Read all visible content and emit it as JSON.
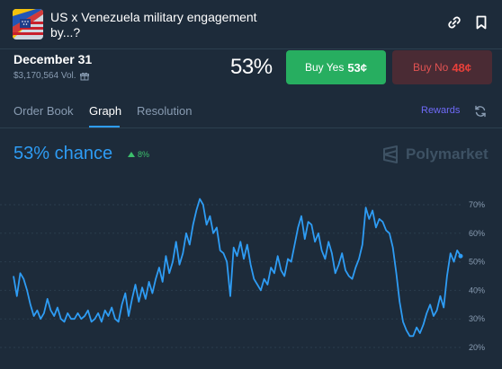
{
  "market": {
    "title": "US x Venezuela military engagement by...?",
    "icon": "flag-usa-venezuela"
  },
  "header_icons": [
    "link-icon",
    "bookmark-icon"
  ],
  "outcome": {
    "date": "December 31",
    "volume": "$3,170,564 Vol.",
    "volume_icon": "gift-icon",
    "probability": "53%"
  },
  "buttons": {
    "yes_label": "Buy Yes",
    "yes_price": "53¢",
    "no_label": "Buy No",
    "no_price": "48¢"
  },
  "tabs": [
    {
      "label": "Order Book",
      "active": false
    },
    {
      "label": "Graph",
      "active": true
    },
    {
      "label": "Resolution",
      "active": false
    }
  ],
  "rewards_label": "Rewards",
  "graph": {
    "chance_text": "53% chance",
    "delta": "8%",
    "delta_direction": "up",
    "brand": "Polymarket"
  },
  "colors": {
    "background": "#1d2b3a",
    "accent_blue": "#2e9cf4",
    "yes_green": "#27ae60",
    "no_red": "#e8403a",
    "rewards_purple": "#6f6af8"
  },
  "chart_data": {
    "type": "line",
    "y_ticks": [
      "70%",
      "60%",
      "50%",
      "40%",
      "30%",
      "20%"
    ],
    "y_tick_values": [
      70,
      60,
      50,
      40,
      30,
      20
    ],
    "ylim": [
      18,
      72
    ],
    "grid": true,
    "series": [
      {
        "values": [
          45,
          38,
          46,
          44,
          40,
          35,
          31,
          33,
          30,
          32,
          37,
          33,
          31,
          34,
          30,
          29,
          32,
          30,
          30,
          32,
          30,
          31,
          33,
          29,
          30,
          32,
          29,
          33,
          31,
          34,
          30,
          29,
          35,
          39,
          31,
          37,
          42,
          36,
          41,
          37,
          43,
          39,
          44,
          48,
          43,
          52,
          46,
          50,
          57,
          49,
          53,
          60,
          56,
          63,
          68,
          72,
          70,
          63,
          66,
          60,
          62,
          54,
          53,
          50,
          38,
          55,
          52,
          57,
          51,
          56,
          49,
          44,
          42,
          40,
          44,
          42,
          48,
          46,
          52,
          47,
          45,
          51,
          50,
          56,
          62,
          66,
          58,
          64,
          63,
          57,
          60,
          54,
          51,
          57,
          53,
          46,
          49,
          53,
          47,
          45,
          44,
          48,
          51,
          56,
          69,
          65,
          68,
          62,
          65,
          64,
          61,
          60,
          55,
          46,
          36,
          29,
          26,
          24,
          24,
          27,
          25,
          28,
          32,
          35,
          31,
          33,
          38,
          34,
          45,
          53,
          50,
          54,
          52
        ]
      }
    ]
  }
}
